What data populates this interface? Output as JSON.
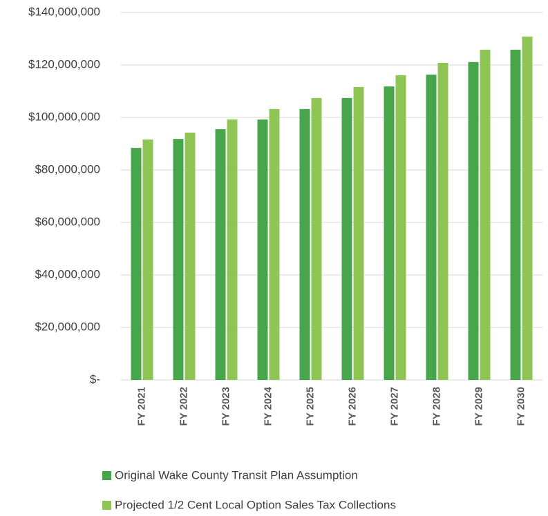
{
  "chart_data": {
    "type": "bar",
    "categories": [
      "FY 2021",
      "FY 2022",
      "FY 2023",
      "FY 2024",
      "FY 2025",
      "FY 2026",
      "FY 2027",
      "FY 2028",
      "FY 2029",
      "FY 2030"
    ],
    "series": [
      {
        "name": "Original Wake County Transit Plan Assumption",
        "color": "#47a54c",
        "values": [
          88400000,
          91800000,
          95500000,
          99200000,
          103200000,
          107400000,
          111800000,
          116300000,
          121100000,
          125800000
        ]
      },
      {
        "name": "Projected 1/2 Cent Local Option Sales Tax Collections",
        "color": "#8fc555",
        "values": [
          91600000,
          94200000,
          99200000,
          103200000,
          107400000,
          111600000,
          116100000,
          120800000,
          125800000,
          130800000
        ]
      }
    ],
    "ylim": [
      0,
      140000000
    ],
    "yticks": [
      {
        "value": 0,
        "label": "$-"
      },
      {
        "value": 20000000,
        "label": "$20,000,000"
      },
      {
        "value": 40000000,
        "label": "$40,000,000"
      },
      {
        "value": 60000000,
        "label": "$60,000,000"
      },
      {
        "value": 80000000,
        "label": "$80,000,000"
      },
      {
        "value": 100000000,
        "label": "$100,000,000"
      },
      {
        "value": 120000000,
        "label": "$120,000,000"
      },
      {
        "value": 140000000,
        "label": "$140,000,000"
      }
    ],
    "grid": true
  }
}
